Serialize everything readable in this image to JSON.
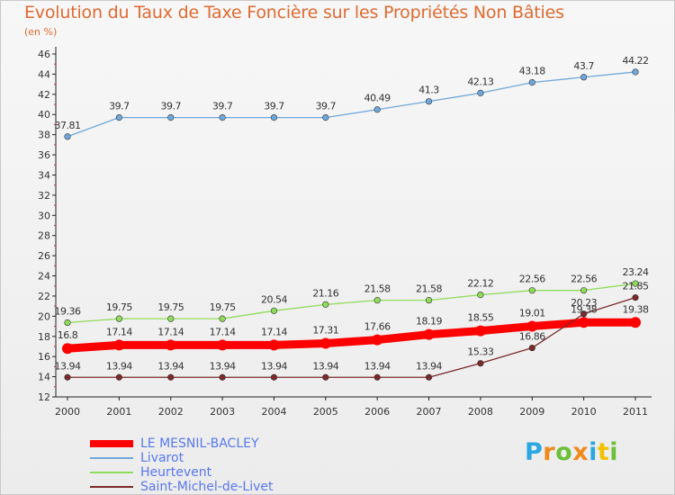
{
  "chart_data": {
    "type": "line",
    "title": "Evolution du Taux de Taxe Foncière sur les Propriétés Non Bâties",
    "ylabel": "(en %)",
    "xlabel": "",
    "categories": [
      "2000",
      "2001",
      "2002",
      "2003",
      "2004",
      "2005",
      "2006",
      "2007",
      "2008",
      "2009",
      "2010",
      "2011"
    ],
    "ylim": [
      12,
      46
    ],
    "yticks": [
      12,
      14,
      16,
      18,
      20,
      22,
      24,
      26,
      28,
      30,
      32,
      34,
      36,
      38,
      40,
      42,
      44,
      46
    ],
    "grid": false,
    "legend_position": "bottom-left",
    "series": [
      {
        "name": "LE MESNIL-BACLEY",
        "color": "#ff0000",
        "values": [
          16.8,
          17.14,
          17.14,
          17.14,
          17.14,
          17.31,
          17.66,
          18.19,
          18.55,
          19.01,
          19.38,
          19.38
        ],
        "labels": [
          "16.8",
          "17.14",
          "17.14",
          "17.14",
          "17.14",
          "17.31",
          "17.66",
          "18.19",
          "18.55",
          "19.01",
          "19.38",
          "19.38"
        ]
      },
      {
        "name": "Livarot",
        "color": "#6fa8dc",
        "values": [
          37.81,
          39.7,
          39.7,
          39.7,
          39.7,
          39.7,
          40.49,
          41.3,
          42.13,
          43.18,
          43.7,
          44.22
        ],
        "labels": [
          "37.81",
          "39.7",
          "39.7",
          "39.7",
          "39.7",
          "39.7",
          "40.49",
          "41.3",
          "42.13",
          "43.18",
          "43.7",
          "44.22"
        ]
      },
      {
        "name": "Heurtevent",
        "color": "#8fdc5a",
        "values": [
          19.36,
          19.75,
          19.75,
          19.75,
          20.54,
          21.16,
          21.58,
          21.58,
          22.12,
          22.56,
          22.56,
          23.24
        ],
        "labels": [
          "19.36",
          "19.75",
          "19.75",
          "19.75",
          "20.54",
          "21.16",
          "21.58",
          "21.58",
          "22.12",
          "22.56",
          "22.56",
          "23.24"
        ]
      },
      {
        "name": "Saint-Michel-de-Livet",
        "color": "#7a2a2a",
        "values": [
          13.94,
          13.94,
          13.94,
          13.94,
          13.94,
          13.94,
          13.94,
          13.94,
          15.33,
          16.86,
          20.23,
          21.85
        ],
        "labels": [
          "13.94",
          "13.94",
          "13.94",
          "13.94",
          "13.94",
          "13.94",
          "13.94",
          "13.94",
          "15.33",
          "16.86",
          "20.23",
          "21.85"
        ]
      }
    ]
  },
  "logo": {
    "text": "Proxiti",
    "letters": [
      "P",
      "r",
      "o",
      "x",
      "i",
      "t",
      "i"
    ],
    "colors": [
      "#2aa7e0",
      "#f08a1c",
      "#6dbf3b",
      "#f08a1c",
      "#2aa7e0",
      "#f2c200",
      "#6dbf3b"
    ]
  },
  "colors": {
    "title": "#e06a30",
    "axis": "#222222",
    "label": "#333333",
    "legend_text": "#5878f0"
  }
}
